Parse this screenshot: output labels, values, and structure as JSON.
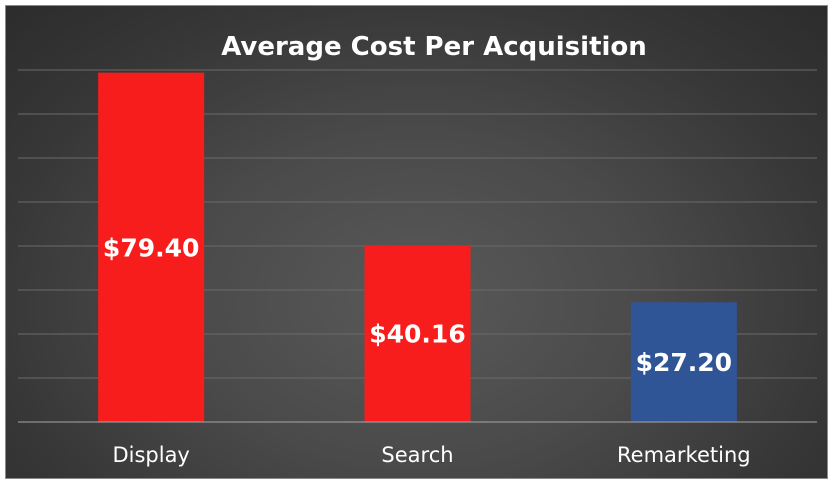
{
  "chart_data": {
    "type": "bar",
    "title": "Average Cost Per Acquisition",
    "xlabel": "",
    "ylabel": "",
    "categories": [
      "Display",
      "Search",
      "Remarketing"
    ],
    "values": [
      79.4,
      40.16,
      27.2
    ],
    "value_labels": [
      "$79.40",
      "$40.16",
      "$27.20"
    ],
    "bar_colors": [
      "#f81d1d",
      "#f81d1d",
      "#2f5597"
    ],
    "ylim": [
      0,
      80
    ],
    "grid": true,
    "legend": "none"
  },
  "colors": {
    "background": "#404040",
    "grid": "#6a6a6a",
    "text": "#ffffff"
  }
}
